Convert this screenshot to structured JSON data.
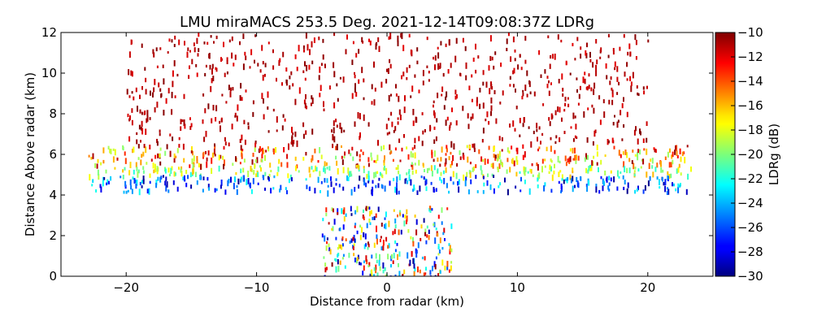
{
  "chart_data": {
    "type": "heatmap",
    "title": "LMU miraMACS 253.5 Deg. 2021-12-14T09:08:37Z  LDRg",
    "xlabel": "Distance from radar (km)",
    "ylabel": "Distance Above radar  (km)",
    "xlim": [
      -25,
      25
    ],
    "ylim": [
      0,
      12
    ],
    "x_ticks": [
      -20,
      -10,
      0,
      10,
      20
    ],
    "x_tick_labels": [
      "−20",
      "−10",
      "0",
      "10",
      "20"
    ],
    "y_ticks": [
      0,
      2,
      4,
      6,
      8,
      10,
      12
    ],
    "y_tick_labels": [
      "0",
      "2",
      "4",
      "6",
      "8",
      "10",
      "12"
    ],
    "colorbar": {
      "label": "LDRg (dB)",
      "range": [
        -30,
        -10
      ],
      "colormap": "jet",
      "ticks": [
        -10,
        -12,
        -14,
        -16,
        -18,
        -20,
        -22,
        -24,
        -26,
        -28,
        -30
      ],
      "tick_labels": [
        "−10",
        "−12",
        "−14",
        "−16",
        "−18",
        "−20",
        "−22",
        "−24",
        "−26",
        "−28",
        "−30"
      ]
    },
    "layers": [
      {
        "feature": "upper cloud layer",
        "x_range": [
          -23,
          23.5
        ],
        "height_range": [
          5.5,
          6.5
        ],
        "ldr_range": [
          -20,
          -10
        ]
      },
      {
        "feature": "mid cloud layer",
        "x_range": [
          -23,
          23.5
        ],
        "height_range": [
          5.0,
          5.5
        ],
        "ldr_range": [
          -22,
          -16
        ]
      },
      {
        "feature": "lower cloud layer",
        "x_range": [
          -23,
          23.5
        ],
        "height_range": [
          4.2,
          5.0
        ],
        "ldr_range": [
          -30,
          -22
        ]
      },
      {
        "feature": "sparse returns aloft",
        "x_range": [
          -20,
          20
        ],
        "height_range": [
          6.5,
          12
        ],
        "ldr_range": [
          -12,
          -10
        ]
      },
      {
        "feature": "near-radar returns",
        "x_range": [
          -5,
          5
        ],
        "height_range": [
          0,
          3.5
        ],
        "ldr_range": [
          -30,
          -10
        ]
      }
    ]
  }
}
